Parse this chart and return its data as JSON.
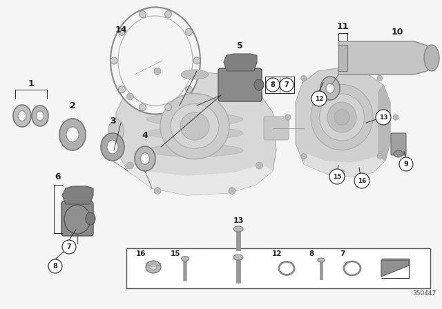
{
  "background_color": "#f5f5f5",
  "fig_width": 6.4,
  "fig_height": 4.48,
  "dpi": 100,
  "diagram_number": "350447",
  "lc": "#222222",
  "lw": 0.7
}
